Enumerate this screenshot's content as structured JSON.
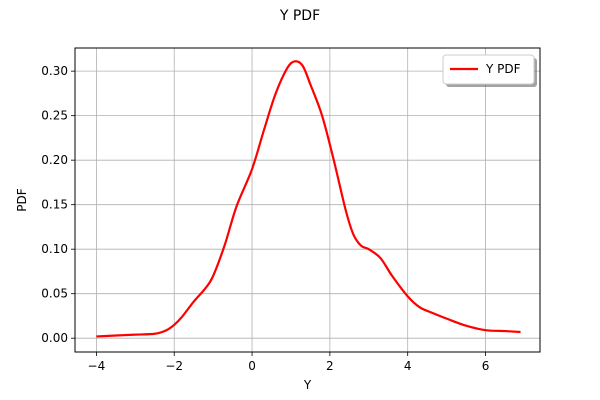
{
  "chart_data": {
    "type": "line",
    "title": "Y PDF",
    "xlabel": "Y",
    "ylabel": "PDF",
    "xlim": [
      -4.55,
      7.4
    ],
    "ylim": [
      -0.0155,
      0.326
    ],
    "xticks": [
      -4,
      -2,
      0,
      2,
      4,
      6
    ],
    "xtick_labels": [
      "−4",
      "−2",
      "0",
      "2",
      "4",
      "6"
    ],
    "yticks": [
      0.0,
      0.05,
      0.1,
      0.15,
      0.2,
      0.25,
      0.3
    ],
    "ytick_labels": [
      "0.00",
      "0.05",
      "0.10",
      "0.15",
      "0.20",
      "0.25",
      "0.30"
    ],
    "grid": true,
    "legend_position": "top-right",
    "series": [
      {
        "name": "Y PDF",
        "color": "#ff0000",
        "x": [
          -4.0,
          -3.5,
          -3.0,
          -2.5,
          -2.2,
          -2.0,
          -1.8,
          -1.5,
          -1.2,
          -1.0,
          -0.7,
          -0.4,
          0.0,
          0.3,
          0.6,
          0.9,
          1.1,
          1.3,
          1.5,
          1.8,
          2.1,
          2.4,
          2.6,
          2.8,
          3.0,
          3.3,
          3.6,
          4.0,
          4.3,
          4.6,
          5.0,
          5.5,
          6.0,
          6.5,
          6.9
        ],
        "y": [
          0.002,
          0.003,
          0.004,
          0.005,
          0.009,
          0.015,
          0.024,
          0.041,
          0.056,
          0.07,
          0.105,
          0.148,
          0.19,
          0.233,
          0.274,
          0.303,
          0.311,
          0.306,
          0.285,
          0.25,
          0.2,
          0.145,
          0.117,
          0.104,
          0.1,
          0.09,
          0.07,
          0.047,
          0.035,
          0.029,
          0.022,
          0.014,
          0.009,
          0.008,
          0.007
        ]
      }
    ]
  }
}
